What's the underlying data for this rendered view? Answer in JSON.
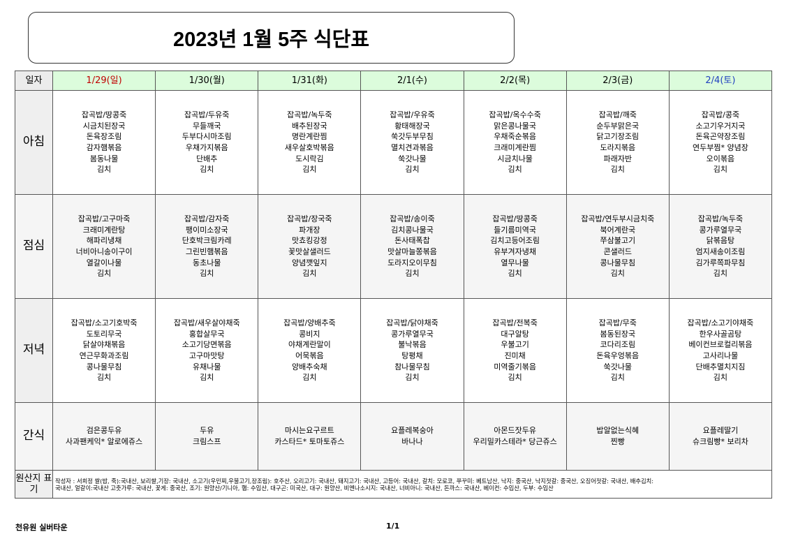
{
  "title": "2023년 1월 5주 식단표",
  "header_label": "일자",
  "colors": {
    "sunday": "#c00000",
    "saturday": "#1f3fbf",
    "header_bg": "#dcfcdc"
  },
  "days": [
    {
      "label": "1/29(일)",
      "type": "sun"
    },
    {
      "label": "1/30(월)",
      "type": ""
    },
    {
      "label": "1/31(화)",
      "type": ""
    },
    {
      "label": "2/1(수)",
      "type": ""
    },
    {
      "label": "2/2(목)",
      "type": ""
    },
    {
      "label": "2/3(금)",
      "type": ""
    },
    {
      "label": "2/4(토)",
      "type": "sat"
    }
  ],
  "meals": [
    {
      "label": "아침",
      "key": "breakfast",
      "cells": [
        [
          "잡곡밥/땅콩죽",
          "시금치된장국",
          "돈육장조림",
          "감자햄볶음",
          "봄동나물",
          "김치"
        ],
        [
          "잡곡밥/두유죽",
          "무들깨국",
          "두부다시마조림",
          "우채가지볶음",
          "단배추",
          "김치"
        ],
        [
          "잡곡밥/녹두죽",
          "배추된장국",
          "명란계란찜",
          "새우살호박볶음",
          "도시락김",
          "김치"
        ],
        [
          "잡곡밥/우유죽",
          "황태해장국",
          "쑥갓두부무침",
          "멸치견과볶음",
          "쑥갓나물",
          "김치"
        ],
        [
          "잡곡밥/옥수수죽",
          "맑은콩나물국",
          "우채죽순볶음",
          "크래미계란찜",
          "시금치나물",
          "김치"
        ],
        [
          "잡곡밥/깨죽",
          "순두부맑은국",
          "닭고기장조림",
          "도라지볶음",
          "파래자반",
          "김치"
        ],
        [
          "잡곡밥/콩죽",
          "소고기우거지국",
          "돈육곤약장조림",
          "연두부찜* 양념장",
          "오이볶음",
          "김치"
        ]
      ]
    },
    {
      "label": "점심",
      "key": "lunch",
      "cells": [
        [
          "잡곡밥/고구마죽",
          "크래미계란탕",
          "해파리냉채",
          "너비아니송이구이",
          "열갈이나물",
          "김치"
        ],
        [
          "잡곡밥/감자죽",
          "팽이미소장국",
          "단호박크림카레",
          "그린빈햄볶음",
          "동초나물",
          "김치"
        ],
        [
          "잡곡밥/장국죽",
          "파개장",
          "맛쵸킹강정",
          "꽃맛살샐러드",
          "양념깻잎지",
          "김치"
        ],
        [
          "잡곡밥/송이죽",
          "김치콩나물국",
          "돈사태폭찹",
          "맛살마늘쫑볶음",
          "도라지오이무침",
          "김치"
        ],
        [
          "잡곡밥/땅콩죽",
          "들기름미역국",
          "김치고등어조림",
          "유부겨자냉채",
          "열무나물",
          "김치"
        ],
        [
          "잡곡밥/연두부시금치죽",
          "북어계란국",
          "쭈삼불고기",
          "콘샐러드",
          "콩나물무침",
          "김치"
        ],
        [
          "잡곡밥/녹두죽",
          "콩가루열무국",
          "닭볶음탕",
          "엄지새송이조림",
          "김가루쪽파무침",
          "김치"
        ]
      ]
    },
    {
      "label": "저녁",
      "key": "dinner",
      "cells": [
        [
          "잡곡밥/소고기호박죽",
          "도토리무국",
          "닭살야채볶음",
          "연근무화과조림",
          "콩나물무침",
          "김치"
        ],
        [
          "잡곡밥/새우살야채죽",
          "홍합살무국",
          "소고기당면볶음",
          "고구마맛탕",
          "유채나물",
          "김치"
        ],
        [
          "잡곡밥/양배추죽",
          "콩비지",
          "야채계란말이",
          "어묵볶음",
          "양배추숙채",
          "김치"
        ],
        [
          "잡곡밥/닭야채죽",
          "콩가루열무국",
          "불낙볶음",
          "탕평채",
          "참나물무침",
          "김치"
        ],
        [
          "잡곡밥/전복죽",
          "대구알탕",
          "우불고기",
          "진미채",
          "미역줄기볶음",
          "김치"
        ],
        [
          "잡곡밥/무죽",
          "봄동된장국",
          "코다리조림",
          "돈육우엉볶음",
          "쑥갓나물",
          "김치"
        ],
        [
          "잡곡밥/소고기야채죽",
          "한우사골곰탕",
          "베이컨브로컬리볶음",
          "고사리나물",
          "단배추멸치지짐",
          "김치"
        ]
      ]
    },
    {
      "label": "간식",
      "key": "snack",
      "cells": [
        [
          "검은콩두유",
          "사과팬케익* 알로에쥬스"
        ],
        [
          "두유",
          "크림스프"
        ],
        [
          "마시는요구르트",
          "카스타드* 토마토쥬스"
        ],
        [
          "요플레복숭아",
          "바나나"
        ],
        [
          "아몬드잣두유",
          "우리밀카스테라* 당근쥬스"
        ],
        [
          "밥알없는식혜",
          "찐빵"
        ],
        [
          "요플레딸기",
          "슈크림빵* 보리차"
        ]
      ]
    }
  ],
  "origin": {
    "label": "원산지 표기",
    "lines": [
      "작성자 : 서희정  쌀(밥, 죽):국내산, 보리쌀,기장: 국내산, 소고기(우민찌,우불고기,장조림): 호주산, 오리고기: 국내산, 돼지고기: 국내산, 고등어: 국내산, 갈치: 모로코, 쭈꾸미: 베트남산, 낙지: 중국산, 낙지젓갈: 중국산, 오징어젓갈: 국내산, 배추김치:",
      "국내산, 얼갈이:국내산 고춧가루: 국내산, 꽃게: 중국산, 조기: 원양산/기니아, 햄: 수입산, 대구곤: 미국산, 대구: 원양산, 비엔나소시지: 국내산, 너비아니: 국내산, 돈까스: 국내산, 베이컨: 수입산, 두부: 수입산"
    ]
  },
  "footer": {
    "organization": "천유원 실버타운",
    "page": "1/1"
  }
}
